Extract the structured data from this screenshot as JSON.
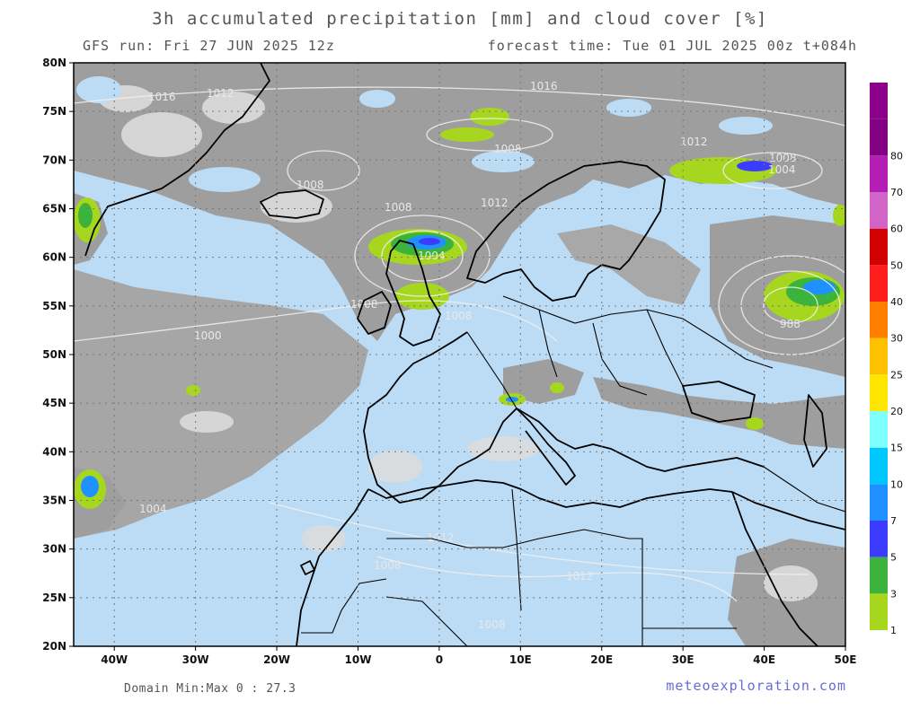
{
  "header": {
    "title": "3h accumulated precipitation [mm] and cloud cover [%]",
    "run": "GFS run: Fri 27 JUN 2025 12z",
    "forecast": "forecast time: Tue 01 JUL 2025 00z  t+084h"
  },
  "footer": {
    "minmax": "Domain Min:Max 0 : 27.3",
    "credit": "meteoexploration.com"
  },
  "axes": {
    "lat_labels": [
      "80N",
      "75N",
      "70N",
      "65N",
      "60N",
      "55N",
      "50N",
      "45N",
      "40N",
      "35N",
      "30N",
      "25N",
      "20N"
    ],
    "lon_labels": [
      "40W",
      "30W",
      "20W",
      "10W",
      "0",
      "10E",
      "20E",
      "30E",
      "40E",
      "50E"
    ],
    "lat_range": [
      20,
      80
    ],
    "lon_range": [
      -45,
      50
    ]
  },
  "legend": {
    "labels": [
      "1",
      "3",
      "5",
      "7",
      "10",
      "15",
      "20",
      "25",
      "30",
      "40",
      "50",
      "60",
      "70",
      "80"
    ],
    "colors": [
      "#a6d71e",
      "#3cb43c",
      "#3c3cff",
      "#1e90ff",
      "#00c8ff",
      "#80ffff",
      "#ffe600",
      "#ffc000",
      "#ff8000",
      "#ff1e1e",
      "#d20000",
      "#d264c8",
      "#b41eb4",
      "#820082",
      "#8c008c"
    ]
  },
  "isobars": {
    "labels": [
      "1016",
      "1012",
      "1016",
      "1008",
      "1012",
      "1008",
      "1008",
      "1004",
      "1008",
      "1004",
      "988",
      "1008",
      "1000",
      "1012",
      "1008",
      "1012",
      "1004",
      "1008",
      "1012",
      "1008"
    ]
  },
  "colors": {
    "ocean": "#bcdcf5",
    "cloud": "#a0a0a0",
    "cloud_light": "#d8d8d8"
  }
}
